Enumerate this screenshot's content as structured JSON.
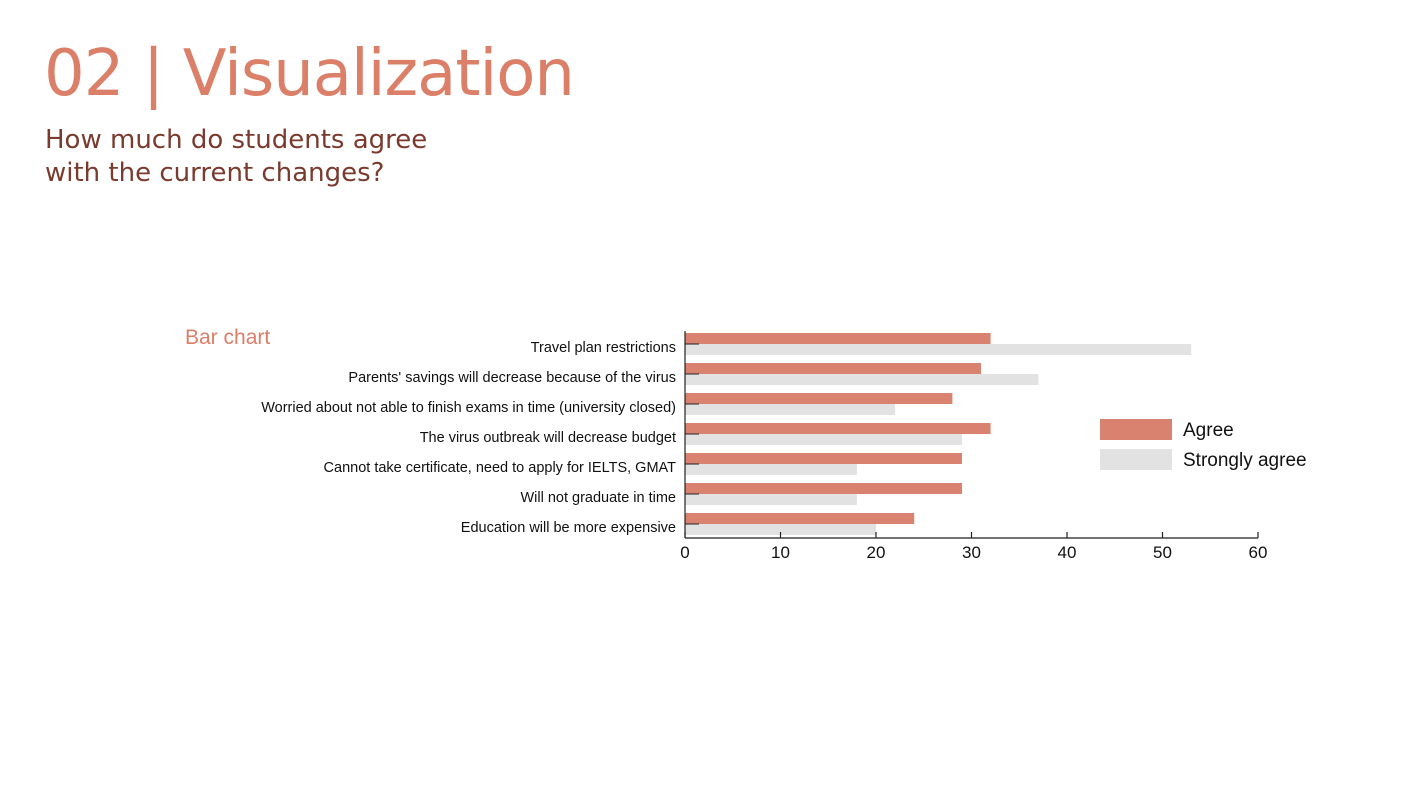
{
  "slide": {
    "title": "02 | Visualization",
    "subtitle": "How much do students agree with the current changes?",
    "chart_caption": "Bar chart"
  },
  "colors": {
    "title": "#dc7f68",
    "subtitle": "#7a3a2e",
    "agree": "#d9826f",
    "strongly_agree": "#e2e2e2",
    "axis": "#222222"
  },
  "chart_data": {
    "type": "bar",
    "orientation": "horizontal",
    "categories": [
      "Travel plan restrictions",
      "Parents' savings will decrease because of the virus",
      "Worried about not able to finish exams in time (university closed)",
      "The virus outbreak will decrease budget",
      "Cannot take certificate, need to apply for IELTS, GMAT",
      "Will not graduate in time",
      "Education will be more expensive"
    ],
    "series": [
      {
        "name": "Agree",
        "values": [
          32,
          31,
          28,
          32,
          29,
          29,
          24
        ]
      },
      {
        "name": "Strongly agree",
        "values": [
          53,
          37,
          22,
          29,
          18,
          18,
          20
        ]
      }
    ],
    "xlim": [
      0,
      60
    ],
    "xticks": [
      "0",
      "10",
      "20",
      "30",
      "40",
      "50",
      "60"
    ],
    "legend_position": "right",
    "grid": false
  }
}
